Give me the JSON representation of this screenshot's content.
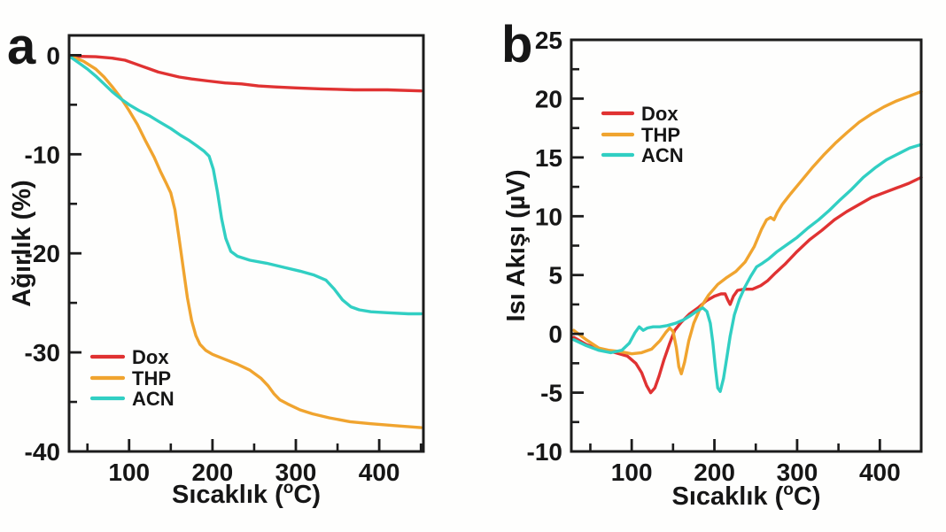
{
  "figure": {
    "background": "#ffffff"
  },
  "colors": {
    "dox": "#e03232",
    "thp": "#f0a42f",
    "acn": "#31cfc3",
    "axis": "#1c1c1c"
  },
  "chart_data": [
    {
      "panel_label": "a",
      "type": "line",
      "xlabel_pre": "Sıcaklık (",
      "xlabel_sup": "o",
      "xlabel_post": "C)",
      "ylabel": "Ağırlık (%)",
      "xlim": [
        28,
        453
      ],
      "ylim": [
        -40,
        2
      ],
      "xticks_major": [
        100,
        200,
        300,
        400
      ],
      "xticks_minor": [
        50,
        150,
        250,
        350,
        450
      ],
      "yticks_major": [
        0,
        -10,
        -20,
        -30,
        -40
      ],
      "yticks_minor": [
        -5,
        -15,
        -25,
        -35
      ],
      "grid": false,
      "legend_position": "lower-left",
      "series": [
        {
          "name": "Dox",
          "color": "#e03232",
          "x": [
            30,
            60,
            80,
            95,
            105,
            115,
            125,
            135,
            145,
            160,
            175,
            195,
            215,
            235,
            255,
            275,
            300,
            330,
            370,
            410,
            450
          ],
          "y": [
            -0.1,
            -0.15,
            -0.3,
            -0.5,
            -0.8,
            -1.1,
            -1.4,
            -1.7,
            -1.9,
            -2.2,
            -2.4,
            -2.6,
            -2.8,
            -2.9,
            -3.1,
            -3.2,
            -3.3,
            -3.4,
            -3.5,
            -3.5,
            -3.6
          ]
        },
        {
          "name": "THP",
          "color": "#f0a42f",
          "x": [
            30,
            45,
            60,
            70,
            80,
            90,
            100,
            110,
            120,
            130,
            138,
            145,
            150,
            155,
            160,
            165,
            170,
            175,
            180,
            185,
            192,
            200,
            215,
            230,
            245,
            258,
            267,
            274,
            281,
            290,
            305,
            320,
            340,
            365,
            390,
            420,
            450
          ],
          "y": [
            -0.1,
            -0.6,
            -1.4,
            -2.2,
            -3.2,
            -4.3,
            -5.6,
            -7.0,
            -8.7,
            -10.3,
            -11.8,
            -13.0,
            -13.9,
            -15.6,
            -18.5,
            -21.5,
            -24.5,
            -26.8,
            -28.3,
            -29.2,
            -29.8,
            -30.2,
            -30.7,
            -31.2,
            -31.8,
            -32.6,
            -33.4,
            -34.2,
            -34.8,
            -35.2,
            -35.8,
            -36.2,
            -36.6,
            -37.0,
            -37.2,
            -37.4,
            -37.6
          ]
        },
        {
          "name": "ACN",
          "color": "#31cfc3",
          "x": [
            30,
            40,
            50,
            60,
            70,
            80,
            90,
            100,
            112,
            124,
            136,
            150,
            162,
            172,
            182,
            190,
            196,
            201,
            206,
            211,
            216,
            222,
            230,
            245,
            265,
            285,
            305,
            322,
            336,
            346,
            356,
            366,
            376,
            390,
            410,
            435,
            450
          ],
          "y": [
            -0.2,
            -0.8,
            -1.4,
            -2.1,
            -2.9,
            -3.7,
            -4.4,
            -5.0,
            -5.6,
            -6.1,
            -6.7,
            -7.4,
            -8.1,
            -8.6,
            -9.2,
            -9.7,
            -10.2,
            -11.5,
            -13.8,
            -16.5,
            -18.5,
            -19.8,
            -20.3,
            -20.7,
            -21.0,
            -21.4,
            -21.8,
            -22.2,
            -22.7,
            -23.6,
            -24.7,
            -25.4,
            -25.7,
            -25.9,
            -26.0,
            -26.1,
            -26.1
          ]
        }
      ]
    },
    {
      "panel_label": "b",
      "type": "line",
      "xlabel_pre": "Sıcaklık (",
      "xlabel_sup": "o",
      "xlabel_post": "C)",
      "ylabel": "Isı Akışı (µV)",
      "xlim": [
        27,
        450
      ],
      "ylim": [
        -10,
        25
      ],
      "xticks_major": [
        100,
        200,
        300,
        400
      ],
      "xticks_minor": [
        50,
        150,
        250,
        350
      ],
      "yticks_major": [
        25,
        20,
        15,
        10,
        5,
        0,
        -5,
        -10
      ],
      "yticks_minor": [
        22.5,
        17.5,
        12.5,
        7.5,
        2.5,
        -2.5,
        -7.5
      ],
      "grid": false,
      "legend_position": "upper-left",
      "series": [
        {
          "name": "Dox",
          "color": "#e03232",
          "x": [
            30,
            45,
            60,
            80,
            95,
            105,
            112,
            118,
            123,
            128,
            133,
            139,
            146,
            152,
            160,
            170,
            180,
            190,
            200,
            208,
            213,
            216,
            219,
            223,
            228,
            236,
            246,
            256,
            264,
            274,
            285,
            300,
            315,
            330,
            345,
            360,
            375,
            390,
            405,
            420,
            435,
            450
          ],
          "y": [
            -0.3,
            -0.9,
            -1.3,
            -1.6,
            -1.9,
            -2.5,
            -3.3,
            -4.4,
            -5.0,
            -4.6,
            -3.6,
            -2.2,
            -0.8,
            0.3,
            1.0,
            1.7,
            2.2,
            2.8,
            3.2,
            3.4,
            3.4,
            2.9,
            2.5,
            3.2,
            3.7,
            3.8,
            3.8,
            4.1,
            4.5,
            5.2,
            5.9,
            7.0,
            8.0,
            8.8,
            9.7,
            10.4,
            11.0,
            11.6,
            12.0,
            12.4,
            12.8,
            13.3
          ]
        },
        {
          "name": "THP",
          "color": "#f0a42f",
          "x": [
            30,
            45,
            60,
            72,
            85,
            100,
            112,
            124,
            134,
            141,
            146,
            150,
            154,
            157,
            160,
            164,
            169,
            175,
            183,
            193,
            204,
            215,
            226,
            237,
            248,
            257,
            263,
            268,
            272,
            276,
            282,
            292,
            305,
            318,
            332,
            346,
            360,
            375,
            390,
            405,
            420,
            435,
            450
          ],
          "y": [
            0.3,
            -0.5,
            -1.2,
            -1.4,
            -1.5,
            -1.7,
            -1.6,
            -1.3,
            -0.6,
            0.1,
            0.5,
            0.2,
            -1.2,
            -2.8,
            -3.4,
            -2.4,
            -0.6,
            0.9,
            2.2,
            3.3,
            4.2,
            4.8,
            5.3,
            6.1,
            7.4,
            8.9,
            9.7,
            9.9,
            9.7,
            10.3,
            11.0,
            11.9,
            13.0,
            14.1,
            15.2,
            16.2,
            17.1,
            18.0,
            18.7,
            19.3,
            19.8,
            20.2,
            20.6
          ]
        },
        {
          "name": "ACN",
          "color": "#31cfc3",
          "x": [
            30,
            45,
            60,
            75,
            88,
            97,
            104,
            109,
            114,
            119,
            126,
            134,
            143,
            153,
            163,
            172,
            180,
            186,
            191,
            195,
            198,
            201,
            204,
            207,
            211,
            215,
            219,
            224,
            230,
            237,
            244,
            251,
            258,
            266,
            276,
            288,
            300,
            313,
            326,
            339,
            352,
            366,
            380,
            394,
            408,
            422,
            436,
            450
          ],
          "y": [
            -0.5,
            -1.0,
            -1.4,
            -1.6,
            -1.4,
            -0.8,
            0.1,
            0.6,
            0.3,
            0.5,
            0.6,
            0.6,
            0.7,
            0.9,
            1.2,
            1.6,
            2.0,
            2.2,
            1.9,
            0.9,
            -0.7,
            -2.8,
            -4.6,
            -4.9,
            -3.8,
            -2.0,
            -0.2,
            1.6,
            2.9,
            4.0,
            4.9,
            5.7,
            6.0,
            6.4,
            7.0,
            7.6,
            8.2,
            9.0,
            9.7,
            10.5,
            11.4,
            12.3,
            13.3,
            14.1,
            14.8,
            15.3,
            15.8,
            16.1
          ]
        }
      ]
    }
  ]
}
